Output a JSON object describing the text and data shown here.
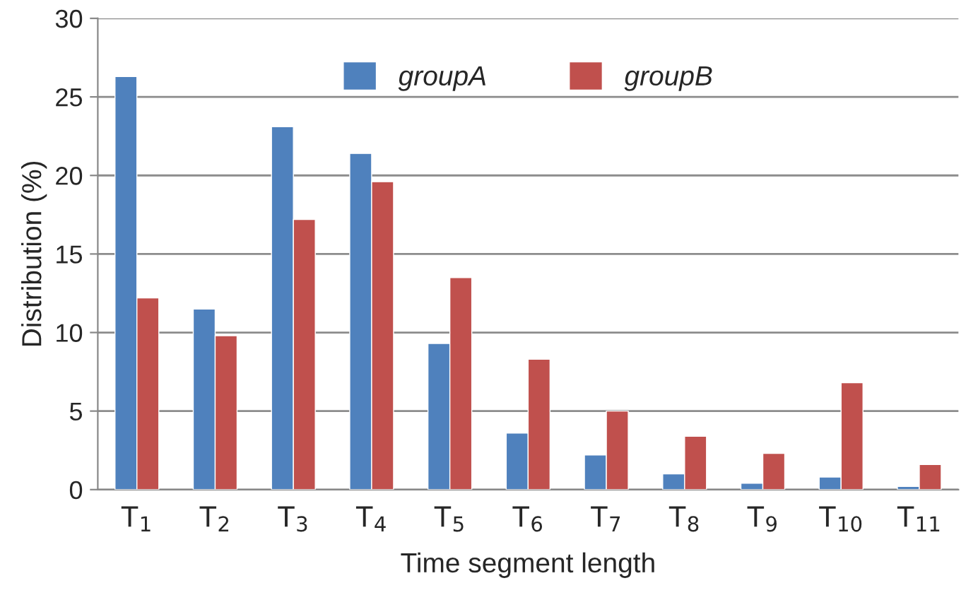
{
  "chart_data": {
    "type": "bar",
    "xlabel": "Time segment length",
    "ylabel": "Distribution (%)",
    "categories": [
      "T$_{1}$",
      "T$_{2}$",
      "T$_{3}$",
      "T$_{4}$",
      "T$_{5}$",
      "T$_{6}$",
      "T$_{7}$",
      "T$_{8}$",
      "T$_{9}$",
      "T$_{10}$",
      "T$_{11}$"
    ],
    "series": [
      {
        "name": "groupA",
        "color": "#4f81bd",
        "values": [
          26.3,
          11.5,
          23.1,
          21.4,
          9.3,
          3.6,
          2.2,
          1.0,
          0.4,
          0.8,
          0.2
        ]
      },
      {
        "name": "groupB",
        "color": "#c0504d",
        "values": [
          12.2,
          9.8,
          17.2,
          19.6,
          13.5,
          8.3,
          5.0,
          3.4,
          2.3,
          6.8,
          1.6
        ]
      }
    ],
    "ylim": [
      0,
      30
    ],
    "yticks": [
      0,
      5,
      10,
      15,
      20,
      25,
      30
    ],
    "grid": "y",
    "legend": "top"
  }
}
